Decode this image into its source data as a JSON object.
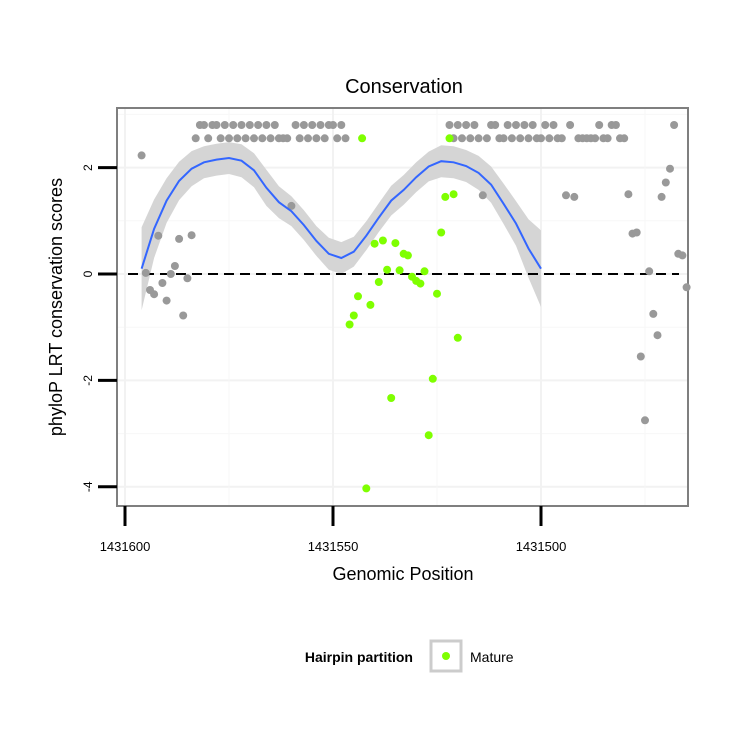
{
  "chart_data": {
    "type": "scatter",
    "title": "Conservation",
    "xlabel": "Genomic Position",
    "ylabel": "phyloP LRT conservation scores",
    "x_reversed": true,
    "xlim": [
      1431600,
      1431462
    ],
    "ylim": [
      -4.35,
      3.15
    ],
    "x_ticks": [
      1431600,
      1431550,
      1431500
    ],
    "x_tick_labels": [
      "1431600",
      "1431550",
      "1431500"
    ],
    "y_ticks": [
      -4,
      -2,
      0,
      2
    ],
    "y_tick_labels": [
      "-4",
      "-2",
      "0",
      "2"
    ],
    "reference_line_y": 0,
    "grid": true,
    "legend": {
      "title": "Hairpin partition",
      "position": "bottom",
      "entries": [
        {
          "label": "Mature",
          "color": "#7fff00"
        }
      ]
    },
    "colors": {
      "other_points": "#999999",
      "mature_points": "#7fff00",
      "smooth_line": "#3366ff",
      "confidence_band": "#d3d3d3"
    },
    "series": [
      {
        "id": "other",
        "points": [
          [
            1431596,
            2.23
          ],
          [
            1431595,
            0.02
          ],
          [
            1431594,
            -0.3
          ],
          [
            1431593,
            -0.38
          ],
          [
            1431592,
            0.72
          ],
          [
            1431591,
            -0.17
          ],
          [
            1431590,
            -0.5
          ],
          [
            1431589,
            0.0
          ],
          [
            1431588,
            0.15
          ],
          [
            1431587,
            0.66
          ],
          [
            1431586,
            -0.78
          ],
          [
            1431585,
            -0.08
          ],
          [
            1431584,
            0.73
          ],
          [
            1431583,
            2.55
          ],
          [
            1431582,
            2.8
          ],
          [
            1431581,
            2.8
          ],
          [
            1431580,
            2.55
          ],
          [
            1431579,
            2.8
          ],
          [
            1431578,
            2.8
          ],
          [
            1431577,
            2.55
          ],
          [
            1431576,
            2.8
          ],
          [
            1431575,
            2.55
          ],
          [
            1431574,
            2.8
          ],
          [
            1431573,
            2.55
          ],
          [
            1431572,
            2.8
          ],
          [
            1431571,
            2.55
          ],
          [
            1431570,
            2.8
          ],
          [
            1431569,
            2.55
          ],
          [
            1431568,
            2.8
          ],
          [
            1431567,
            2.55
          ],
          [
            1431566,
            2.8
          ],
          [
            1431565,
            2.55
          ],
          [
            1431564,
            2.8
          ],
          [
            1431563,
            2.55
          ],
          [
            1431562,
            2.55
          ],
          [
            1431561,
            2.55
          ],
          [
            1431560,
            1.28
          ],
          [
            1431559,
            2.8
          ],
          [
            1431558,
            2.55
          ],
          [
            1431557,
            2.8
          ],
          [
            1431556,
            2.55
          ],
          [
            1431555,
            2.8
          ],
          [
            1431554,
            2.55
          ],
          [
            1431553,
            2.8
          ],
          [
            1431552,
            2.55
          ],
          [
            1431551,
            2.8
          ],
          [
            1431550,
            2.8
          ],
          [
            1431549,
            2.55
          ],
          [
            1431548,
            2.8
          ],
          [
            1431547,
            2.55
          ],
          [
            1431522,
            2.8
          ],
          [
            1431521,
            2.55
          ],
          [
            1431520,
            2.8
          ],
          [
            1431519,
            2.55
          ],
          [
            1431518,
            2.8
          ],
          [
            1431517,
            2.55
          ],
          [
            1431516,
            2.8
          ],
          [
            1431515,
            2.55
          ],
          [
            1431514,
            1.48
          ],
          [
            1431513,
            2.55
          ],
          [
            1431512,
            2.8
          ],
          [
            1431511,
            2.8
          ],
          [
            1431510,
            2.55
          ],
          [
            1431509,
            2.55
          ],
          [
            1431508,
            2.8
          ],
          [
            1431507,
            2.55
          ],
          [
            1431506,
            2.8
          ],
          [
            1431505,
            2.55
          ],
          [
            1431504,
            2.8
          ],
          [
            1431503,
            2.55
          ],
          [
            1431502,
            2.8
          ],
          [
            1431501,
            2.55
          ],
          [
            1431500,
            2.55
          ],
          [
            1431499,
            2.8
          ],
          [
            1431498,
            2.55
          ],
          [
            1431497,
            2.8
          ],
          [
            1431496,
            2.55
          ],
          [
            1431495,
            2.55
          ],
          [
            1431494,
            1.48
          ],
          [
            1431493,
            2.8
          ],
          [
            1431492,
            1.45
          ],
          [
            1431491,
            2.55
          ],
          [
            1431490,
            2.55
          ],
          [
            1431489,
            2.55
          ],
          [
            1431488,
            2.55
          ],
          [
            1431487,
            2.55
          ],
          [
            1431486,
            2.8
          ],
          [
            1431485,
            2.55
          ],
          [
            1431484,
            2.55
          ],
          [
            1431483,
            2.8
          ],
          [
            1431482,
            2.8
          ],
          [
            1431481,
            2.55
          ],
          [
            1431480,
            2.55
          ],
          [
            1431479,
            1.5
          ],
          [
            1431478,
            0.76
          ],
          [
            1431477,
            0.78
          ],
          [
            1431476,
            -1.55
          ],
          [
            1431475,
            -2.75
          ],
          [
            1431474,
            0.05
          ],
          [
            1431473,
            -0.75
          ],
          [
            1431472,
            -1.15
          ],
          [
            1431471,
            1.45
          ],
          [
            1431470,
            1.72
          ],
          [
            1431469,
            1.98
          ],
          [
            1431468,
            2.8
          ],
          [
            1431467,
            0.38
          ],
          [
            1431466,
            0.35
          ],
          [
            1431465,
            -0.25
          ]
        ]
      },
      {
        "id": "mature",
        "name": "Mature",
        "points": [
          [
            1431546,
            -0.95
          ],
          [
            1431545,
            -0.78
          ],
          [
            1431544,
            -0.42
          ],
          [
            1431543,
            2.55
          ],
          [
            1431542,
            -4.03
          ],
          [
            1431541,
            -0.58
          ],
          [
            1431540,
            0.57
          ],
          [
            1431539,
            -0.15
          ],
          [
            1431538,
            0.63
          ],
          [
            1431537,
            0.08
          ],
          [
            1431536,
            -2.33
          ],
          [
            1431535,
            0.58
          ],
          [
            1431534,
            0.07
          ],
          [
            1431533,
            0.38
          ],
          [
            1431532,
            0.35
          ],
          [
            1431531,
            -0.05
          ],
          [
            1431530,
            -0.13
          ],
          [
            1431529,
            -0.18
          ],
          [
            1431528,
            0.05
          ],
          [
            1431527,
            -3.03
          ],
          [
            1431526,
            -1.97
          ],
          [
            1431525,
            -0.37
          ],
          [
            1431524,
            0.78
          ],
          [
            1431523,
            1.45
          ],
          [
            1431522,
            2.55
          ],
          [
            1431521,
            1.5
          ],
          [
            1431520,
            -1.2
          ]
        ]
      }
    ],
    "smooth_curve": [
      [
        1431596,
        0.1
      ],
      [
        1431593,
        0.85
      ],
      [
        1431590,
        1.38
      ],
      [
        1431587,
        1.75
      ],
      [
        1431584,
        1.98
      ],
      [
        1431581,
        2.1
      ],
      [
        1431578,
        2.15
      ],
      [
        1431575,
        2.18
      ],
      [
        1431572,
        2.13
      ],
      [
        1431569,
        1.95
      ],
      [
        1431566,
        1.62
      ],
      [
        1431563,
        1.35
      ],
      [
        1431560,
        1.18
      ],
      [
        1431557,
        0.92
      ],
      [
        1431554,
        0.62
      ],
      [
        1431551,
        0.38
      ],
      [
        1431548,
        0.3
      ],
      [
        1431545,
        0.42
      ],
      [
        1431542,
        0.72
      ],
      [
        1431539,
        1.06
      ],
      [
        1431536,
        1.38
      ],
      [
        1431533,
        1.58
      ],
      [
        1431530,
        1.82
      ],
      [
        1431527,
        2.02
      ],
      [
        1431524,
        2.12
      ],
      [
        1431521,
        2.1
      ],
      [
        1431518,
        2.03
      ],
      [
        1431515,
        1.9
      ],
      [
        1431512,
        1.68
      ],
      [
        1431509,
        1.32
      ],
      [
        1431506,
        0.95
      ],
      [
        1431503,
        0.48
      ],
      [
        1431500,
        0.1
      ]
    ],
    "band_halfwidth": [
      0.78,
      0.55,
      0.42,
      0.36,
      0.33,
      0.3,
      0.3,
      0.3,
      0.31,
      0.32,
      0.34,
      0.3,
      0.28,
      0.28,
      0.28,
      0.3,
      0.3,
      0.28,
      0.27,
      0.27,
      0.28,
      0.28,
      0.28,
      0.28,
      0.3,
      0.3,
      0.3,
      0.32,
      0.34,
      0.38,
      0.42,
      0.55,
      0.72
    ]
  }
}
